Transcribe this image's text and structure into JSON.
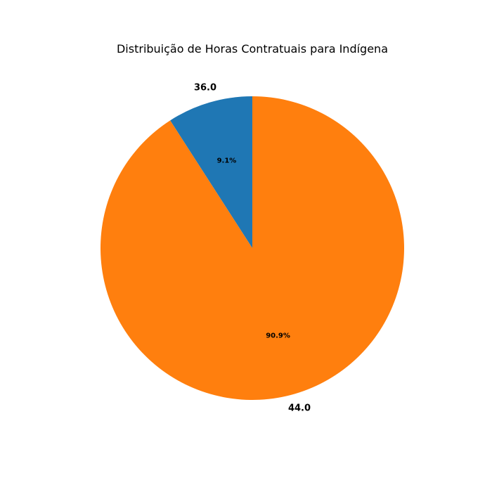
{
  "chart_data": {
    "type": "pie",
    "title": "Distribuição de Horas Contratuais para Indígena",
    "labels": [
      "36.0",
      "44.0"
    ],
    "values": [
      9.1,
      90.9
    ],
    "percent_labels": [
      "9.1%",
      "90.9%"
    ],
    "colors": [
      "#1f77b4",
      "#ff7f0e"
    ],
    "start_angle": 90,
    "direction": "counterclockwise"
  }
}
